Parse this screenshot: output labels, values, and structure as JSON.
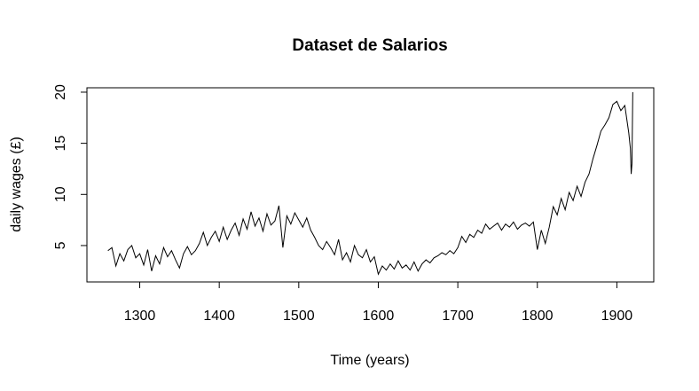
{
  "chart_data": {
    "type": "line",
    "title": "Dataset de Salarios",
    "x_label": "Time (years)",
    "y_label": "daily wages (£)",
    "x": [
      1260,
      1265,
      1270,
      1275,
      1280,
      1285,
      1290,
      1295,
      1300,
      1305,
      1310,
      1315,
      1320,
      1325,
      1330,
      1335,
      1340,
      1345,
      1350,
      1355,
      1360,
      1365,
      1370,
      1375,
      1380,
      1385,
      1390,
      1395,
      1400,
      1405,
      1410,
      1415,
      1420,
      1425,
      1430,
      1435,
      1440,
      1445,
      1450,
      1455,
      1460,
      1465,
      1470,
      1475,
      1480,
      1485,
      1490,
      1495,
      1500,
      1505,
      1510,
      1515,
      1520,
      1525,
      1530,
      1535,
      1540,
      1545,
      1550,
      1555,
      1560,
      1565,
      1570,
      1575,
      1580,
      1585,
      1590,
      1595,
      1600,
      1605,
      1610,
      1615,
      1620,
      1625,
      1630,
      1635,
      1640,
      1645,
      1650,
      1655,
      1660,
      1665,
      1670,
      1675,
      1680,
      1685,
      1690,
      1695,
      1700,
      1705,
      1710,
      1715,
      1720,
      1725,
      1730,
      1735,
      1740,
      1745,
      1750,
      1755,
      1760,
      1765,
      1770,
      1775,
      1780,
      1785,
      1790,
      1795,
      1800,
      1805,
      1810,
      1815,
      1820,
      1825,
      1830,
      1835,
      1840,
      1845,
      1850,
      1855,
      1860,
      1865,
      1870,
      1875,
      1880,
      1885,
      1890,
      1895,
      1900,
      1905,
      1910,
      1915,
      1917,
      1918,
      1919,
      1920
    ],
    "values": [
      4.5,
      4.8,
      3.0,
      4.2,
      3.5,
      4.6,
      5.0,
      3.8,
      4.2,
      3.1,
      4.6,
      2.5,
      4.0,
      3.2,
      4.8,
      3.9,
      4.5,
      3.6,
      2.8,
      4.2,
      4.9,
      4.1,
      4.5,
      5.2,
      6.3,
      5.0,
      5.8,
      6.4,
      5.4,
      6.8,
      5.6,
      6.5,
      7.2,
      6.0,
      7.6,
      6.6,
      8.3,
      6.9,
      7.7,
      6.4,
      8.1,
      7.0,
      7.4,
      8.9,
      4.8,
      7.9,
      7.1,
      8.2,
      7.5,
      6.8,
      7.7,
      6.5,
      5.8,
      5.0,
      4.6,
      5.4,
      4.8,
      4.1,
      5.6,
      3.6,
      4.3,
      3.4,
      5.0,
      4.1,
      3.8,
      4.6,
      3.4,
      3.9,
      2.2,
      3.0,
      2.6,
      3.2,
      2.7,
      3.5,
      2.8,
      3.1,
      2.6,
      3.4,
      2.5,
      3.2,
      3.6,
      3.3,
      3.8,
      4.0,
      4.3,
      4.1,
      4.5,
      4.2,
      4.8,
      5.9,
      5.3,
      6.1,
      5.8,
      6.5,
      6.2,
      7.1,
      6.6,
      6.9,
      7.2,
      6.5,
      7.1,
      6.8,
      7.3,
      6.6,
      7.0,
      7.2,
      6.9,
      7.3,
      4.6,
      6.5,
      5.2,
      6.8,
      8.8,
      8.0,
      9.6,
      8.5,
      10.2,
      9.4,
      10.8,
      9.8,
      11.2,
      12.0,
      13.5,
      14.8,
      16.2,
      16.8,
      17.5,
      18.8,
      19.1,
      18.2,
      18.7,
      16.0,
      14.5,
      12.0,
      13.0,
      20.0
    ],
    "color": "#000000",
    "xlim": [
      1233.6,
      1946.4
    ],
    "ylim": [
      1.44,
      20.43
    ],
    "xticks": [
      1300,
      1400,
      1500,
      1600,
      1700,
      1800,
      1900
    ],
    "yticks": [
      5,
      10,
      15,
      20
    ]
  }
}
